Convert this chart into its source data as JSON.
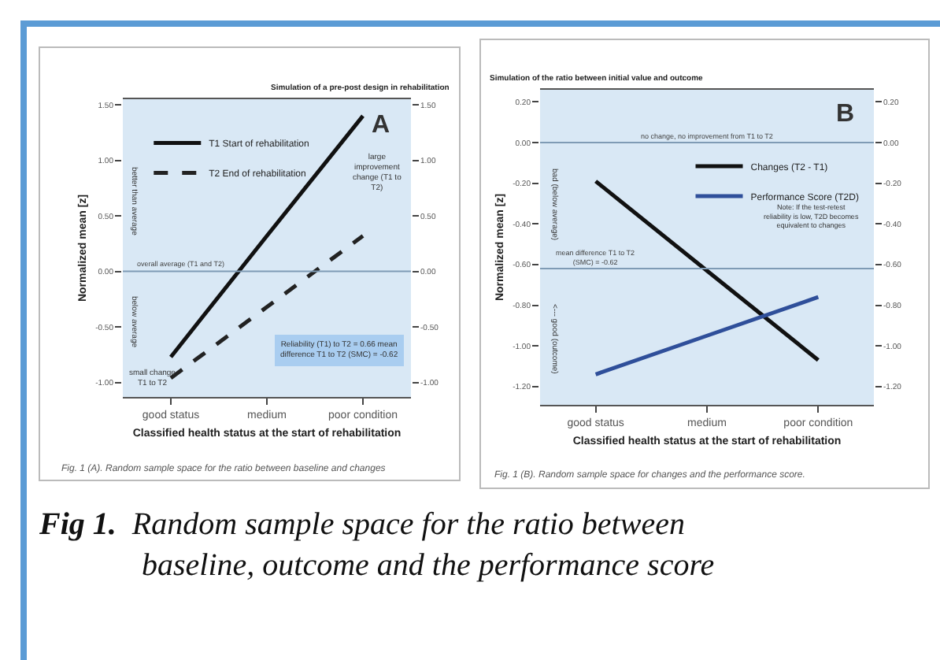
{
  "chart_data": [
    {
      "type": "line",
      "title": "Simulation of a pre-post design in rehabilitation",
      "xlabel": "Classified health status at the start of rehabilitation",
      "ylabel": "Normalized mean [z]",
      "categories": [
        "good status",
        "medium",
        "poor condition"
      ],
      "series": [
        {
          "name": "T1 Start of rehabilitation",
          "color": "#111111",
          "values": [
            -0.77,
            0.32,
            1.4
          ],
          "line_style": "solid"
        },
        {
          "name": "T2 End of rehabilitation",
          "color": "#222222",
          "values": [
            -0.96,
            -0.32,
            0.32
          ],
          "line_style": "dashed",
          "axis": "y2"
        }
      ],
      "ylim": [
        -1.13,
        1.55
      ],
      "yticks": [
        {
          "value": -1,
          "label": "-1.00"
        },
        {
          "value": -0.5,
          "label": "-0.50"
        },
        {
          "value": 0,
          "label": "0.00"
        },
        {
          "value": 0.5,
          "label": "0.50"
        },
        {
          "value": 1,
          "label": "1.00"
        },
        {
          "value": 1.5,
          "label": "1.50"
        }
      ],
      "y2lim": [
        -1.13,
        1.55
      ],
      "y2ticks": [
        {
          "value": -1,
          "label": "-1.00"
        },
        {
          "value": -0.5,
          "label": "-0.50"
        },
        {
          "value": 0,
          "label": "0.00"
        },
        {
          "value": 0.5,
          "label": "0.50"
        },
        {
          "value": 1,
          "label": "1.00"
        },
        {
          "value": 1.5,
          "label": "1.50"
        }
      ],
      "ref_lines": [
        {
          "axis": "y",
          "value": 0,
          "label": "overall average (T1 and T2)",
          "color": "#7f9bb5"
        }
      ],
      "annotations": [
        "A",
        "better than average",
        "below average",
        "Reliability (T1) to T2 = 0.66 mean difference T1 to T2 (SMC) = -0.62",
        "Fig. 1 (A). Random sample space for the ratio between baseline and changes",
        "large improvement change (T1 to T2)",
        "small change T1 to T2"
      ],
      "legend": "top left",
      "grid": false
    },
    {
      "type": "line",
      "title": "Simulation of the ratio between initial value and outcome",
      "xlabel": "Classified health status at the start of rehabilitation",
      "ylabel": "Normalized mean [z]",
      "categories": [
        "good status",
        "medium",
        "poor condition"
      ],
      "series": [
        {
          "name": "Changes (T2 - T1)",
          "color": "#111111",
          "values": [
            -0.19,
            -0.63,
            -1.07
          ],
          "line_style": "solid"
        },
        {
          "name": "Performance Score (T2D)",
          "color": "#2f4f9a",
          "values": [
            -1.14,
            -0.95,
            -0.76
          ],
          "line_style": "solid",
          "axis": "y2"
        }
      ],
      "ylim": [
        -1.29,
        0.26
      ],
      "yticks": [
        {
          "value": -1.2,
          "label": "-1.20"
        },
        {
          "value": -1,
          "label": "-1.00"
        },
        {
          "value": -0.8,
          "label": "-0.80"
        },
        {
          "value": -0.6,
          "label": "-0.60"
        },
        {
          "value": -0.4,
          "label": "-0.40"
        },
        {
          "value": -0.2,
          "label": "-0.20"
        },
        {
          "value": 0,
          "label": "0.00"
        },
        {
          "value": 0.2,
          "label": "0.20"
        }
      ],
      "y2lim": [
        -1.29,
        0.26
      ],
      "y2ticks": [
        {
          "value": -1.2,
          "label": "-1.20"
        },
        {
          "value": -1,
          "label": "-1.00"
        },
        {
          "value": -0.8,
          "label": "-0.80"
        },
        {
          "value": -0.6,
          "label": "-0.60"
        },
        {
          "value": -0.4,
          "label": "-0.40"
        },
        {
          "value": -0.2,
          "label": "-0.20"
        },
        {
          "value": 0,
          "label": "0.00"
        },
        {
          "value": 0.2,
          "label": "0.20"
        }
      ],
      "ref_lines": [
        {
          "axis": "y",
          "value": 0,
          "label": "no change, no improvement from T1 to T2",
          "color": "#7f9bb5"
        },
        {
          "axis": "y",
          "value": -0.62,
          "label": "mean difference T1 to T2 (SMC) = -0.62",
          "color": "#7f9bb5"
        }
      ],
      "annotations": [
        "B",
        "bad (below average)",
        "<--- good (outcome)",
        "Note: If the test-retest reliability is low, T2D becomes equivalent to changes",
        "Fig. 1 (B). Random sample space for changes and the performance score.",
        "Fig 1. Random sample space for the ratio between baseline, outcome and the performance score"
      ],
      "legend": "top right",
      "grid": false
    }
  ]
}
